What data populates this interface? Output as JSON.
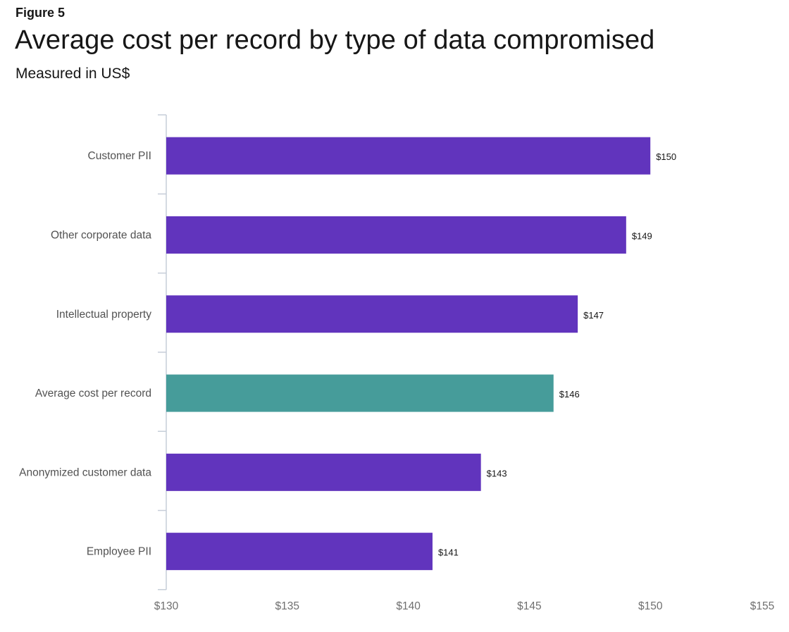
{
  "figure_label": "Figure 5",
  "title": "Average cost per record by type of data compromised",
  "subtitle": "Measured in US$",
  "colors": {
    "bar_default": "#6134BD",
    "bar_highlight": "#469C9A",
    "axis_line": "#c6cdd8"
  },
  "chart_data": {
    "type": "bar",
    "orientation": "horizontal",
    "categories": [
      "Customer PII",
      "Other corporate data",
      "Intellectual property",
      "Average cost per record",
      "Anonymized customer data",
      "Employee PII"
    ],
    "values": [
      150,
      149,
      147,
      146,
      143,
      141
    ],
    "value_labels": [
      "$150",
      "$149",
      "$147",
      "$146",
      "$143",
      "$141"
    ],
    "highlight_category": "Average cost per record",
    "xlim": [
      130,
      155
    ],
    "xticks": [
      130,
      135,
      140,
      145,
      150,
      155
    ],
    "xtick_labels": [
      "$130",
      "$135",
      "$140",
      "$145",
      "$150",
      "$155"
    ],
    "grid": false,
    "legend": "none"
  }
}
